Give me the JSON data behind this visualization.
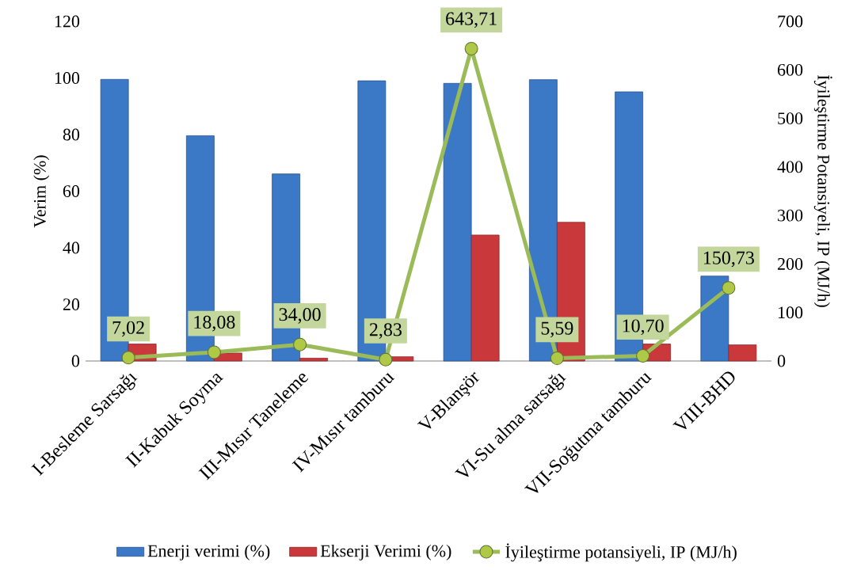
{
  "chart_data": {
    "type": "bar",
    "categories": [
      "I-Besleme Sarsağı",
      "II-Kabuk Soyma",
      "III-Mısır Taneleme",
      "IV-Mısır tamburu",
      "V-Blanşör",
      "VI-Su alma sarsağı",
      "VII-Soğutma tamburu",
      "VIII-BHD"
    ],
    "ylabel": "Verim (%)",
    "y2label": "İyileştirme Potansiyeli, IP (MJ/h)",
    "ylim": [
      0,
      120
    ],
    "yticks": [
      0,
      20,
      40,
      60,
      80,
      100,
      120
    ],
    "y2lim": [
      0,
      700
    ],
    "y2ticks": [
      0,
      100,
      200,
      300,
      400,
      500,
      600,
      700
    ],
    "legend": "bottom",
    "grid": false,
    "series": [
      {
        "name": "Enerji verimi (%)",
        "color": "#3b78c6",
        "values": [
          99.5,
          79.6,
          66.1,
          99,
          98.1,
          99.4,
          95.1,
          30
        ]
      },
      {
        "name": "Ekserji Verimi (%)",
        "color": "#c9383a",
        "values": [
          6,
          2.8,
          1,
          1.5,
          44.5,
          49,
          6,
          5.7
        ]
      },
      {
        "name": "İyileştirme potansiyeli, IP (MJ/h)",
        "type": "line",
        "axis": "y2",
        "color": "#9bbb59",
        "marker": "circle",
        "line_style": "solid",
        "values": [
          7.02,
          18.08,
          34.0,
          2.83,
          643.71,
          5.59,
          10.7,
          150.73
        ],
        "value_labels": [
          "7,02",
          "18,08",
          "34,00",
          "2,83",
          "643,71",
          "5,59",
          "10,70",
          "150,73"
        ]
      }
    ]
  }
}
